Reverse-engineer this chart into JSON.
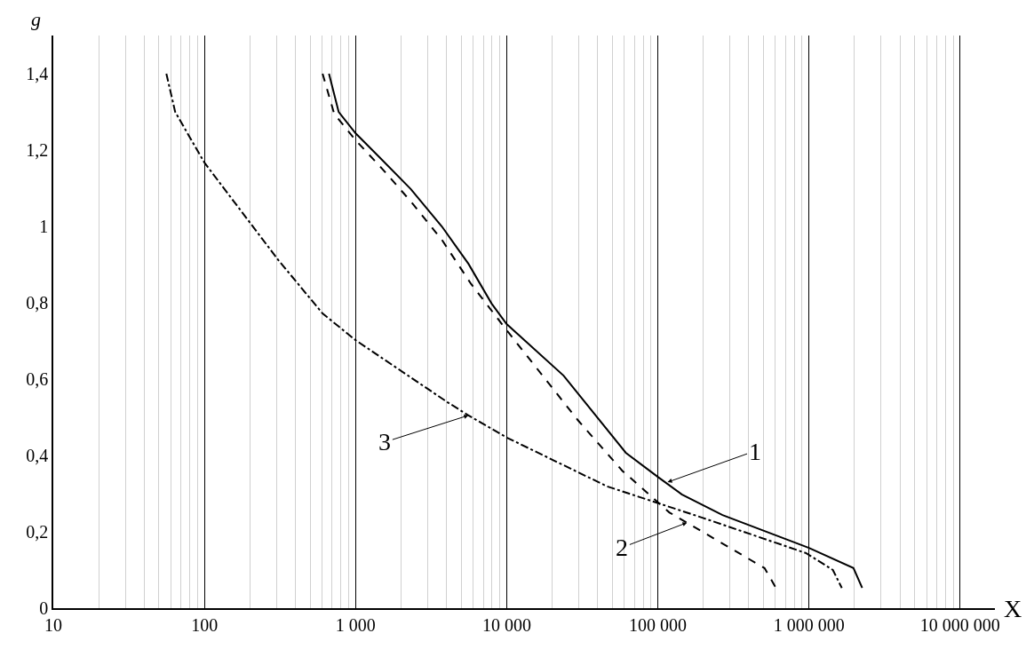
{
  "chart_data": {
    "type": "line",
    "xlabel": "X",
    "ylabel": "g",
    "log": "x",
    "grid": "x",
    "xlim": [
      10,
      17000000
    ],
    "xticks": [
      10,
      100,
      {
        "value": 1000,
        "label": "1 000"
      },
      {
        "value": 10000,
        "label": "10 000"
      },
      {
        "value": 100000,
        "label": "100 000"
      },
      {
        "value": 1000000,
        "label": "1 000 000"
      },
      {
        "value": 10000000,
        "label": "10 000 000"
      }
    ],
    "ylim": [
      0,
      1.5
    ],
    "yticks": [
      0,
      {
        "value": 0.2,
        "label": "0,2"
      },
      {
        "value": 0.4,
        "label": "0,4"
      },
      {
        "value": 0.6,
        "label": "0,6"
      },
      {
        "value": 0.8,
        "label": "0,8"
      },
      1,
      {
        "value": 1.2,
        "label": "1,2"
      },
      {
        "value": 1.4,
        "label": "1,4"
      }
    ],
    "series": [
      {
        "color": "#000000",
        "line_style": "solid",
        "x": [
          667,
          773,
          1000,
          1442,
          2317,
          3722,
          5585,
          7943,
          10000,
          23800,
          61400,
          100000,
          144000,
          268000,
          1000000,
          1970000,
          2250000
        ],
        "values": [
          1.4,
          1.3,
          1.244,
          1.181,
          1.098,
          1.0,
          0.902,
          0.798,
          0.744,
          0.609,
          0.407,
          0.344,
          0.298,
          0.244,
          0.158,
          0.105,
          0.053
        ]
      },
      {
        "color": "#000000",
        "line_style": "dashed",
        "x": [
          605,
          722,
          1000,
          1500,
          2350,
          3722,
          5820,
          10000,
          29500,
          58200,
          119000,
          508000,
          605000
        ],
        "values": [
          1.4,
          1.295,
          1.226,
          1.151,
          1.063,
          0.965,
          0.849,
          0.728,
          0.493,
          0.36,
          0.251,
          0.105,
          0.053
        ]
      },
      {
        "color": "#000000",
        "line_style": "dashdot",
        "x": [
          56,
          64,
          100,
          308,
          605,
          1000,
          4040,
          5585,
          10000,
          46200,
          197000,
          960000,
          1440000,
          1650000
        ],
        "values": [
          1.4,
          1.3,
          1.167,
          0.912,
          0.772,
          0.702,
          0.54,
          0.505,
          0.447,
          0.319,
          0.237,
          0.144,
          0.1,
          0.053
        ]
      }
    ],
    "annotations": [
      {
        "text": "1",
        "x": 116000,
        "y": 0.33
      },
      {
        "text": "2",
        "x": 156000,
        "y": 0.224
      },
      {
        "text": "3",
        "x": 5585,
        "y": 0.505
      }
    ]
  }
}
